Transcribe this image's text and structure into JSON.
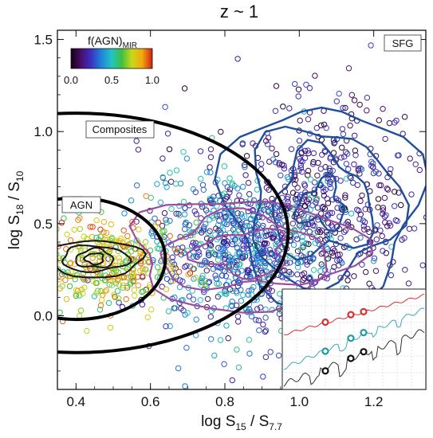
{
  "chart_data": {
    "type": "scatter",
    "title": "z ~ 1",
    "xlabel": {
      "main": "log S",
      "sub1": "15",
      "mid": " / S",
      "sub2": "7.7"
    },
    "ylabel": {
      "main": "log S",
      "sub1": "18",
      "mid": " / S",
      "sub2": "10"
    },
    "xlim": [
      0.35,
      1.34
    ],
    "ylim": [
      -0.4,
      1.55
    ],
    "xticks": [
      "0.4",
      "0.6",
      "0.8",
      "1.0",
      "1.2"
    ],
    "yticks": [
      "0.0",
      "0.5",
      "1.0",
      "1.5"
    ],
    "colorbar": {
      "label": "f(AGN)",
      "label_sub": "MIR",
      "ticks": [
        "0.0",
        "0.5",
        "1.0"
      ],
      "colormap": [
        "#120012",
        "#4a0f6e",
        "#3a32c4",
        "#1d86d8",
        "#23c3c3",
        "#3fbf3f",
        "#c9d917",
        "#f2a80f",
        "#d21f12"
      ]
    },
    "region_labels": [
      "SFG",
      "Composites",
      "AGN"
    ],
    "series": [
      {
        "group": "SFG",
        "color": "mixed-low",
        "approx_count": 520
      },
      {
        "group": "Composites",
        "color": "mixed-mid",
        "approx_count": 750
      },
      {
        "group": "AGN",
        "color": "mixed-high",
        "approx_count": 330
      }
    ],
    "contours": {
      "agn": {
        "color": "#141414",
        "center": [
          0.45,
          0.31
        ]
      },
      "composite": {
        "color": "#9b4e9f",
        "center": [
          0.85,
          0.34
        ]
      },
      "sfg": {
        "color": "#1f4e9a",
        "center": [
          1.06,
          0.6
        ]
      }
    },
    "boundaries": {
      "agn_ellipse": {
        "cx": 0.4,
        "cy": 0.31,
        "rx": 0.24,
        "ry": 0.33,
        "color": "#000000"
      },
      "composite_ellipse": {
        "cx": 0.4,
        "cy": 0.45,
        "rx": 0.57,
        "ry": 0.65,
        "color": "#000000"
      }
    },
    "inset": {
      "type": "line",
      "series": [
        {
          "color": "#d83030",
          "markers": "#d83030"
        },
        {
          "color": "#3fa7c0",
          "markers": "#1e9aa6"
        },
        {
          "color": "#303030",
          "markers": "#111111"
        }
      ]
    }
  }
}
